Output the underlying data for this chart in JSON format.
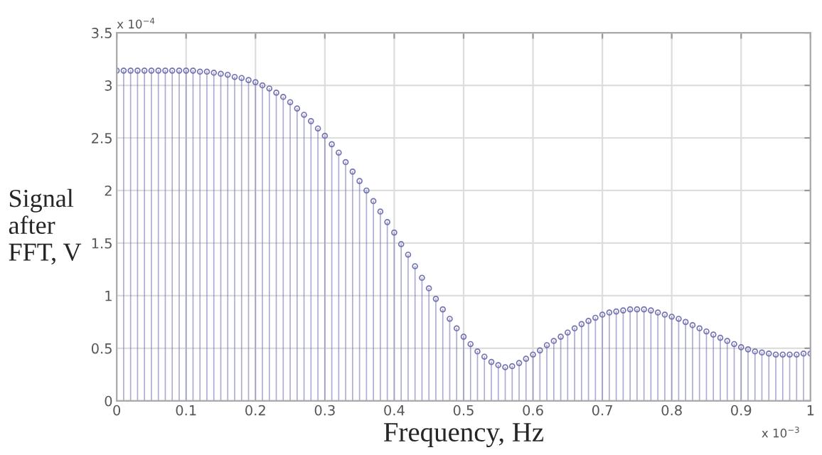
{
  "chart_data": {
    "type": "lollipop",
    "xlabel": "Frequency, Hz",
    "ylabel": "Signal\nafter\nFFT, V",
    "x": [
      0,
      0.01,
      0.02,
      0.03,
      0.04,
      0.05,
      0.06,
      0.07,
      0.08,
      0.09,
      0.1,
      0.11,
      0.12,
      0.13,
      0.14,
      0.15,
      0.16,
      0.17,
      0.18,
      0.19,
      0.2,
      0.21,
      0.22,
      0.23,
      0.24,
      0.25,
      0.26,
      0.27,
      0.28,
      0.29,
      0.3,
      0.31,
      0.32,
      0.33,
      0.34,
      0.35,
      0.36,
      0.37,
      0.38,
      0.39,
      0.4,
      0.41,
      0.42,
      0.43,
      0.44,
      0.45,
      0.46,
      0.47,
      0.48,
      0.49,
      0.5,
      0.51,
      0.52,
      0.53,
      0.54,
      0.55,
      0.56,
      0.57,
      0.58,
      0.59,
      0.6,
      0.61,
      0.62,
      0.63,
      0.64,
      0.65,
      0.66,
      0.67,
      0.68,
      0.69,
      0.7,
      0.71,
      0.72,
      0.73,
      0.74,
      0.75,
      0.76,
      0.77,
      0.78,
      0.79,
      0.8,
      0.81,
      0.82,
      0.83,
      0.84,
      0.85,
      0.86,
      0.87,
      0.88,
      0.89,
      0.9,
      0.91,
      0.92,
      0.93,
      0.94,
      0.95,
      0.96,
      0.97,
      0.98,
      0.99,
      1.0
    ],
    "series": [
      {
        "color": "#7474b4",
        "values": [
          3.14,
          3.14,
          3.14,
          3.14,
          3.14,
          3.14,
          3.14,
          3.14,
          3.14,
          3.14,
          3.14,
          3.14,
          3.13,
          3.13,
          3.12,
          3.11,
          3.1,
          3.08,
          3.07,
          3.05,
          3.03,
          3.0,
          2.97,
          2.93,
          2.89,
          2.84,
          2.78,
          2.72,
          2.66,
          2.59,
          2.52,
          2.44,
          2.36,
          2.27,
          2.18,
          2.09,
          2.0,
          1.9,
          1.8,
          1.7,
          1.6,
          1.49,
          1.39,
          1.28,
          1.17,
          1.07,
          0.97,
          0.87,
          0.78,
          0.69,
          0.61,
          0.54,
          0.47,
          0.42,
          0.37,
          0.34,
          0.32,
          0.33,
          0.36,
          0.4,
          0.44,
          0.48,
          0.53,
          0.57,
          0.61,
          0.65,
          0.69,
          0.73,
          0.76,
          0.79,
          0.82,
          0.84,
          0.85,
          0.86,
          0.87,
          0.87,
          0.87,
          0.86,
          0.84,
          0.82,
          0.8,
          0.78,
          0.75,
          0.72,
          0.69,
          0.66,
          0.63,
          0.6,
          0.57,
          0.54,
          0.51,
          0.49,
          0.47,
          0.46,
          0.45,
          0.44,
          0.44,
          0.44,
          0.44,
          0.45,
          0.45
        ]
      }
    ],
    "xlim": [
      0,
      1
    ],
    "xticks": [
      0,
      0.1,
      0.2,
      0.3,
      0.4,
      0.5,
      0.6,
      0.7,
      0.8,
      0.9,
      1
    ],
    "ylim": [
      0,
      3.5
    ],
    "yticks": [
      0,
      0.5,
      1,
      1.5,
      2,
      2.5,
      3,
      3.5
    ],
    "annotations": [
      "x 10$^{−4}$",
      "x 10$^{−3}$"
    ],
    "grid": true,
    "marker": "circle"
  }
}
